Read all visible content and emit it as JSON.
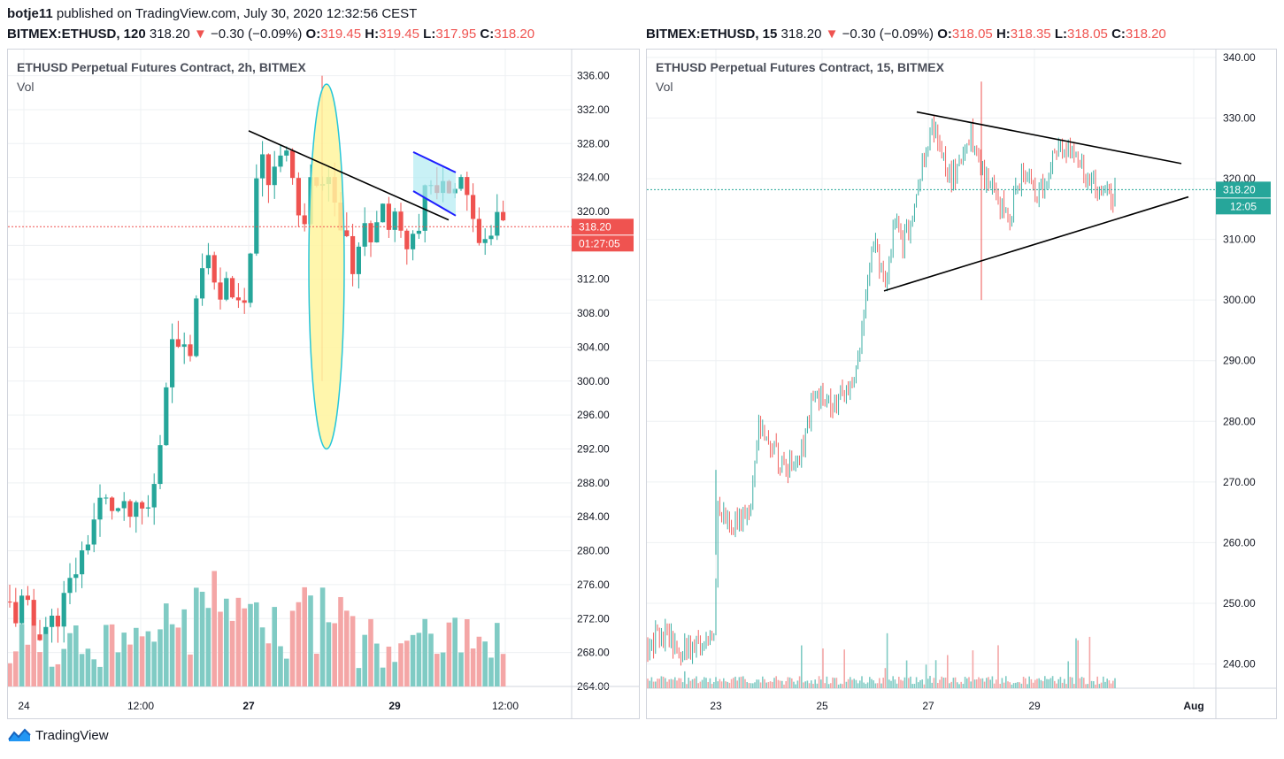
{
  "header": {
    "line1": "botje11 published on TradingView.com, July 30, 2020 12:32:56 CEST"
  },
  "left": {
    "symbol": "BITMEX:ETHUSD, 120",
    "price": "318.20",
    "arrow": "▼",
    "change": "−0.30 (−0.09%)",
    "o_label": "O:",
    "o": "319.45",
    "h_label": "H:",
    "h": "319.45",
    "l_label": "L:",
    "l": "317.95",
    "c_label": "C:",
    "c": "318.20",
    "title": "ETHUSD Perpetual Futures Contract, 2h, BITMEX",
    "vol": "Vol",
    "price_tag": "318.20",
    "countdown": "01:27:05",
    "x_ticks": [
      "24",
      "12:00",
      "27",
      "29",
      "12:00"
    ]
  },
  "right": {
    "symbol": "BITMEX:ETHUSD, 15",
    "price": "318.20",
    "arrow": "▼",
    "change": "−0.30 (−0.09%)",
    "o_label": "O:",
    "o": "318.05",
    "h_label": "H:",
    "h": "318.35",
    "l_label": "L:",
    "l": "318.05",
    "c_label": "C:",
    "c": "318.20",
    "title": "ETHUSD Perpetual Futures Contract, 15, BITMEX",
    "vol": "Vol",
    "price_tag": "318.20",
    "countdown": "12:05",
    "x_ticks": [
      "23",
      "25",
      "27",
      "29",
      "Aug"
    ]
  },
  "footer": {
    "brand": "TradingView"
  },
  "colors": {
    "up": "#26a69a",
    "down": "#ef5350",
    "vol_up": "#80cbc4",
    "vol_down": "#f4a6a6"
  },
  "chart_data": [
    {
      "type": "candlestick",
      "timeframe": "2h",
      "y_ticks": [
        "336.00",
        "332.00",
        "328.00",
        "324.00",
        "320.00",
        "316.00",
        "312.00",
        "308.00",
        "304.00",
        "300.00",
        "296.00",
        "292.00",
        "288.00",
        "284.00",
        "280.00",
        "276.00",
        "272.00",
        "268.00",
        "264.00"
      ],
      "ylim": [
        264,
        337
      ],
      "last_price": 318.2,
      "annotations": [
        "descending trendline",
        "highlighted ellipse around wick",
        "bull flag channel"
      ]
    },
    {
      "type": "candlestick",
      "timeframe": "15",
      "y_ticks": [
        "340.00",
        "330.00",
        "320.00",
        "310.00",
        "300.00",
        "290.00",
        "280.00",
        "270.00",
        "260.00",
        "250.00",
        "240.00"
      ],
      "ylim": [
        236,
        341
      ],
      "last_price": 318.2,
      "annotations": [
        "symmetrical triangle"
      ]
    }
  ]
}
